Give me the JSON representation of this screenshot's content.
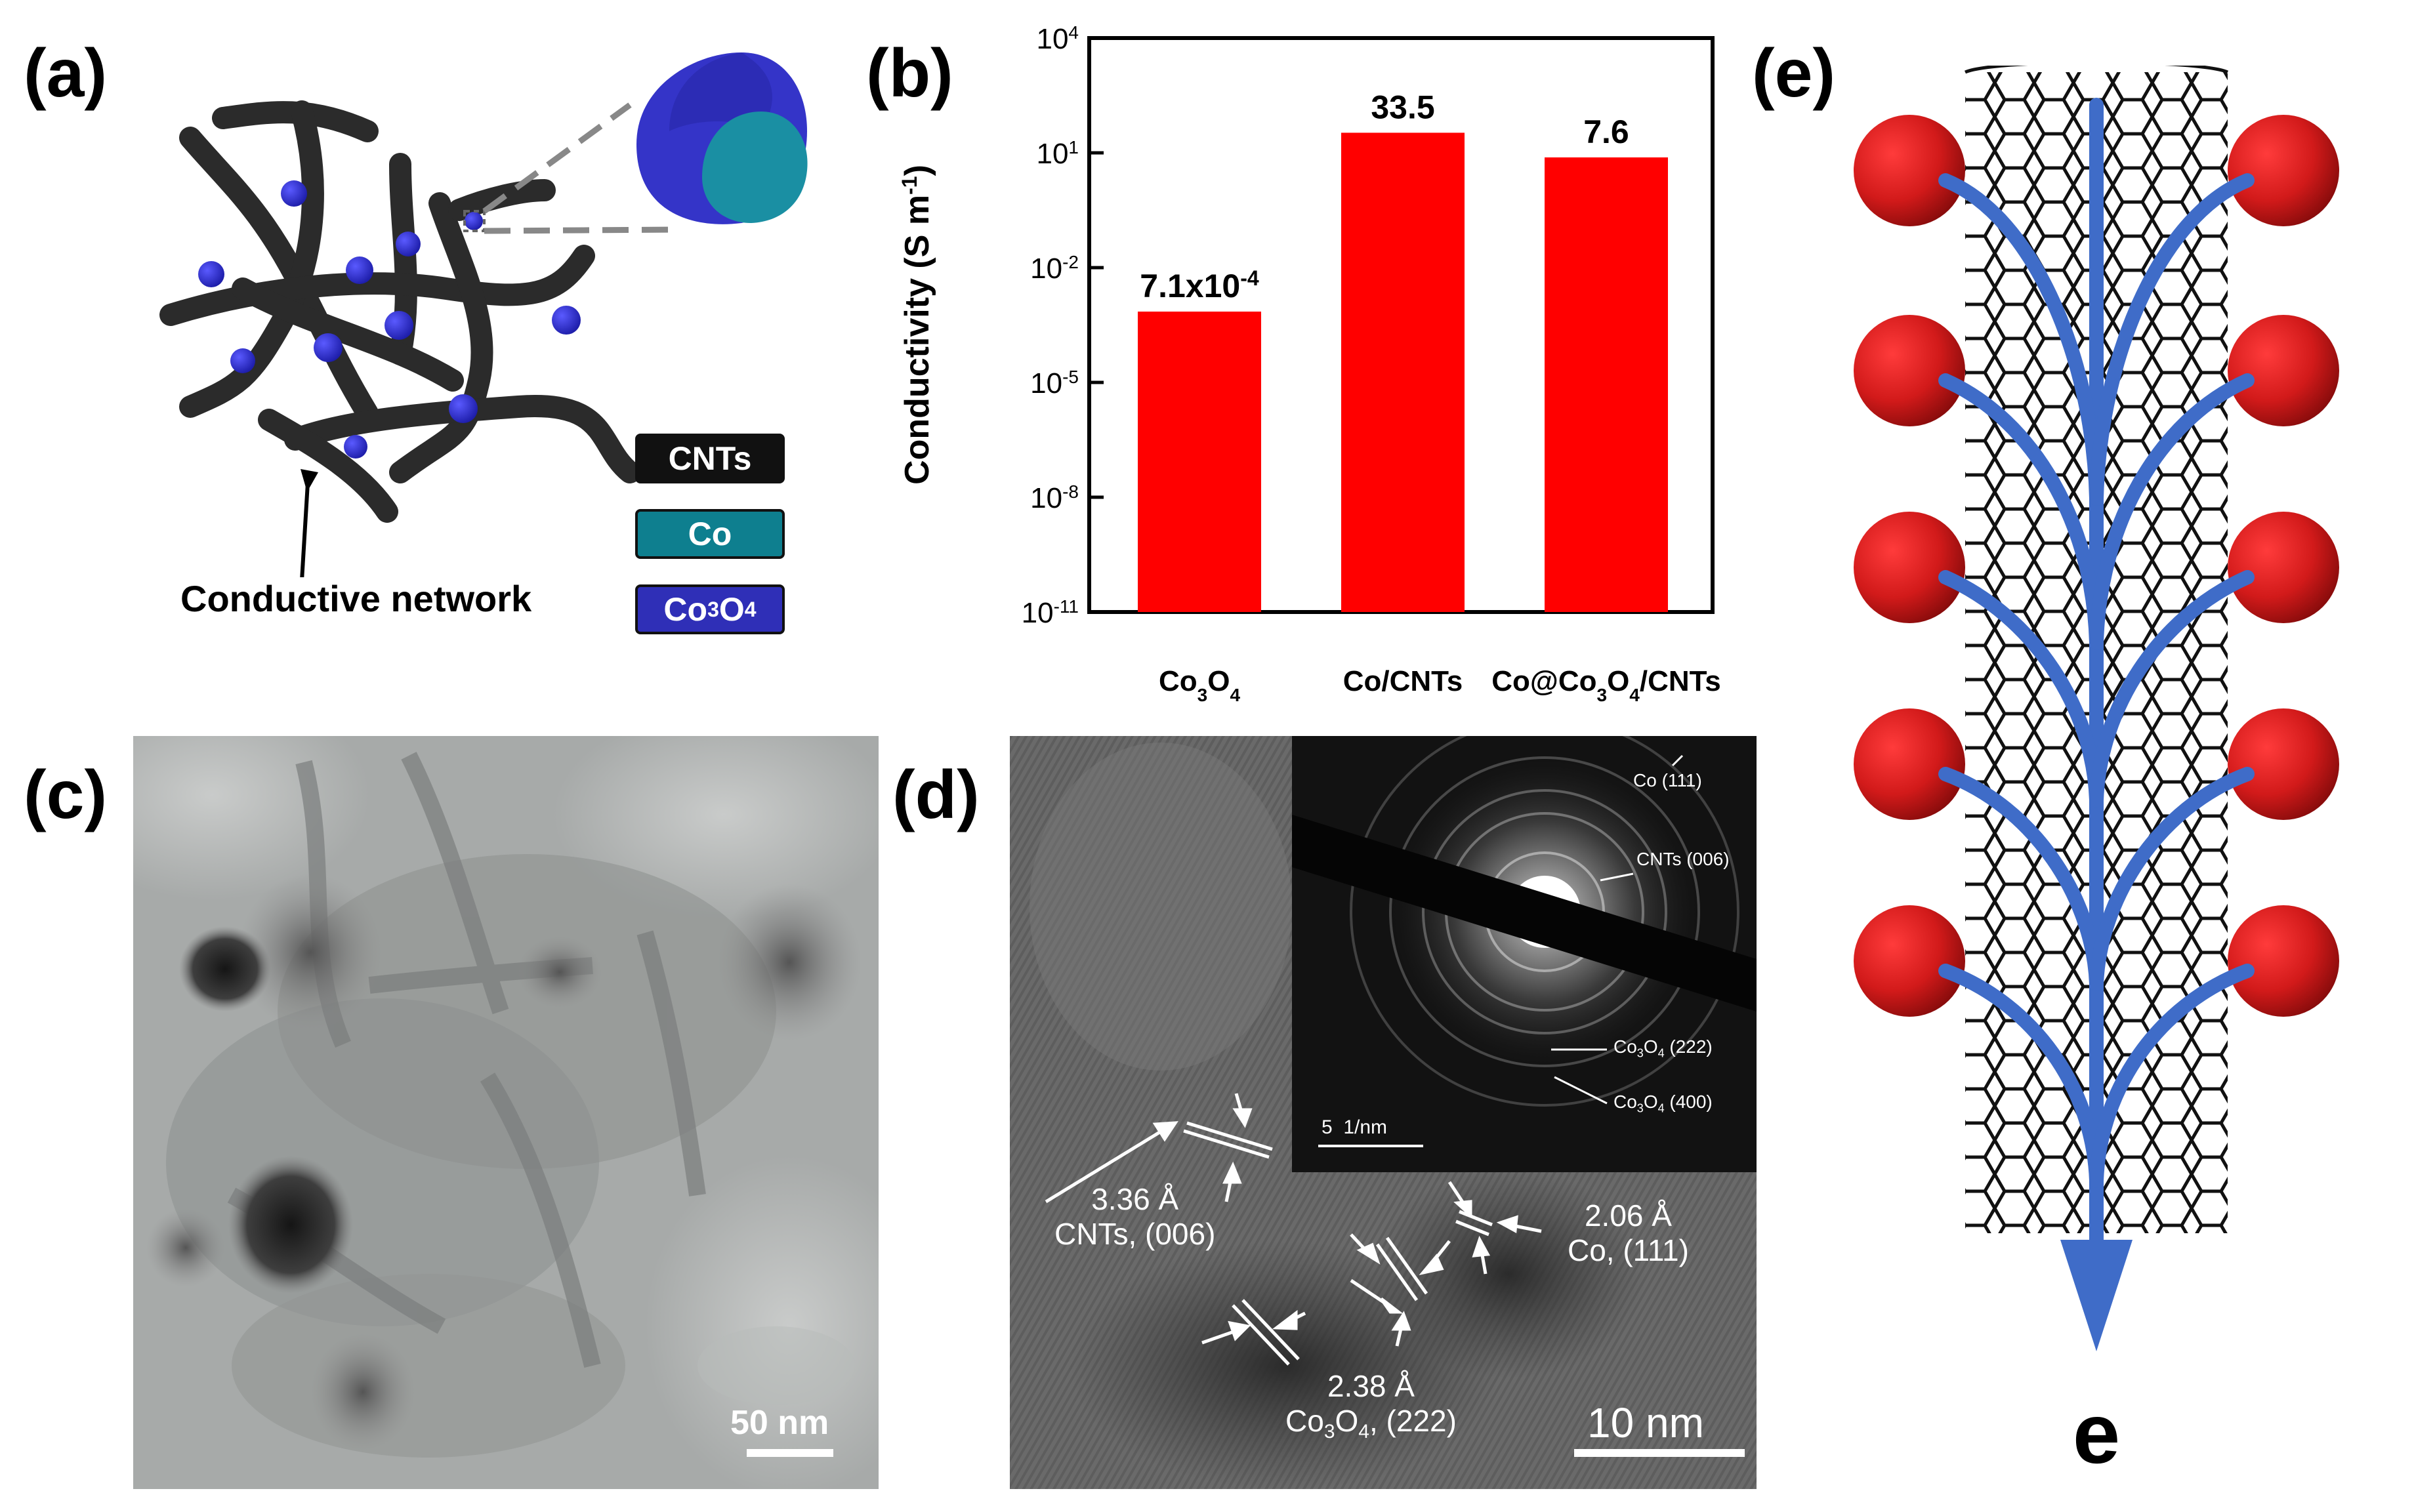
{
  "panels": {
    "a": {
      "label": "(a)",
      "annotation": "Conductive network",
      "legend": [
        {
          "label": "CNTs",
          "color": "#111111"
        },
        {
          "label": "Co",
          "color": "#0e7f8f"
        },
        {
          "label": "Co",
          "sub": "3",
          "mid": "O",
          "sub2": "4",
          "color": "#2f2fb7"
        }
      ]
    },
    "b": {
      "label": "(b)"
    },
    "c": {
      "label": "(c)",
      "scale": "50 nm"
    },
    "d": {
      "label": "(d)",
      "scale": "10 nm",
      "inset_scale": "5  1/nm",
      "inset_labels": {
        "co111": "Co (111)",
        "cnt006": "CNTs (006)",
        "co3o4_222_a": "Co",
        "co3o4_222_b": "3",
        "co3o4_222_c": "O",
        "co3o4_222_d": "4",
        "co3o4_222_e": " (222)",
        "co3o4_400_a": "Co",
        "co3o4_400_b": "3",
        "co3o4_400_c": "O",
        "co3o4_400_d": "4",
        "co3o4_400_e": " (400)"
      },
      "measurements": {
        "cnt_d": "3.36 Å",
        "cnt_plane": "CNTs, (006)",
        "co_d": "2.06 Å",
        "co_plane": "Co, (111)",
        "co3o4_d": "2.38 Å",
        "co3o4_plane_a": "Co",
        "co3o4_plane_b": "3",
        "co3o4_plane_c": "O",
        "co3o4_plane_d": "4",
        "co3o4_plane_e": ", (222)"
      }
    },
    "e": {
      "label": "(e)",
      "electron": "e"
    }
  },
  "chart_data": {
    "type": "bar",
    "ylabel": "Conductivity (S m",
    "ylabel_sup": "-1",
    "ylabel_close": ")",
    "yscale": "log",
    "ylim": [
      1e-11,
      10000.0
    ],
    "yticks": [
      {
        "base": "10",
        "exp": "4",
        "value": 10000.0
      },
      {
        "base": "10",
        "exp": "1",
        "value": 10
      },
      {
        "base": "10",
        "exp": "-2",
        "value": 0.01
      },
      {
        "base": "10",
        "exp": "-5",
        "value": 1e-05
      },
      {
        "base": "10",
        "exp": "-8",
        "value": 1e-08
      },
      {
        "base": "10",
        "exp": "-11",
        "value": 1e-11
      }
    ],
    "bar_color": "#ff0000",
    "bars": [
      {
        "category": "Co",
        "sub": "3",
        "mid": "O",
        "sub2": "4",
        "tail": "",
        "value": 0.00071,
        "label": "7.1x10",
        "label_exp": "-4"
      },
      {
        "category": "Co/CNTs",
        "sub": "",
        "mid": "",
        "sub2": "",
        "tail": "",
        "value": 33.5,
        "label": "33.5",
        "label_exp": ""
      },
      {
        "category": "Co@Co",
        "sub": "3",
        "mid": "O",
        "sub2": "4",
        "tail": "/CNTs",
        "value": 7.6,
        "label": "7.6",
        "label_exp": ""
      }
    ]
  }
}
